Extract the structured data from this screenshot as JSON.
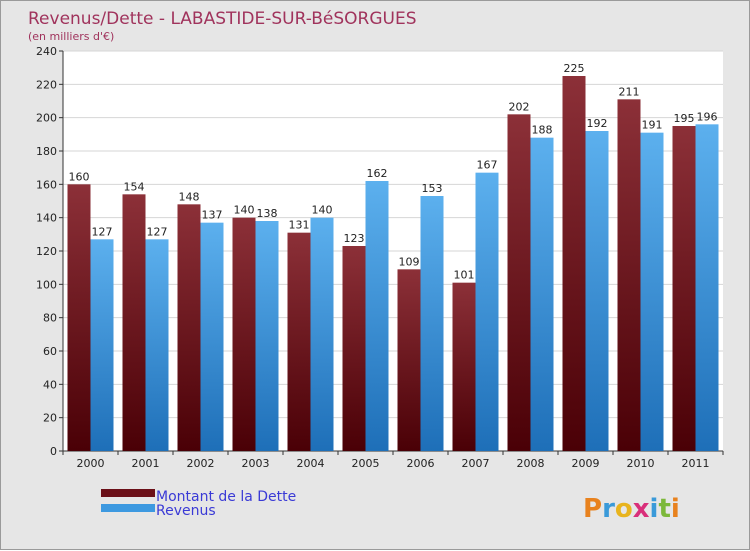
{
  "chart_data": {
    "type": "bar",
    "title": "Revenus/Dette - LABASTIDE-SUR-BéSORGUES",
    "subtitle": "(en milliers d'€)",
    "categories": [
      "2000",
      "2001",
      "2002",
      "2003",
      "2004",
      "2005",
      "2006",
      "2007",
      "2008",
      "2009",
      "2010",
      "2011"
    ],
    "series": [
      {
        "name": "Montant de la Dette",
        "color": "#6b1018",
        "values": [
          160,
          154,
          148,
          140,
          131,
          123,
          109,
          101,
          202,
          225,
          211,
          195
        ]
      },
      {
        "name": "Revenus",
        "color": "#3d99e0",
        "values": [
          127,
          127,
          137,
          138,
          140,
          162,
          153,
          167,
          188,
          192,
          191,
          196
        ]
      }
    ],
    "ylim": [
      0,
      240
    ],
    "yticks": [
      0,
      20,
      40,
      60,
      80,
      100,
      120,
      140,
      160,
      180,
      200,
      220,
      240
    ],
    "grid": true,
    "legend_position": "bottom-left"
  },
  "logo": {
    "text": "Proxiti"
  }
}
